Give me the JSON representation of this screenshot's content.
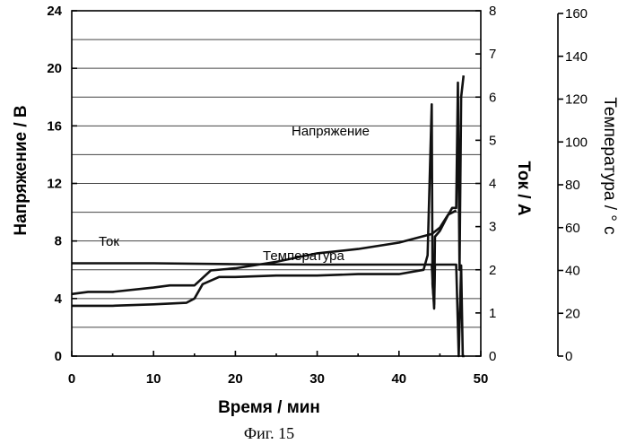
{
  "chart_data": {
    "type": "line",
    "caption": "Фиг. 15",
    "xlabel": "Время / мин",
    "xlim": [
      0,
      50
    ],
    "x_ticks": [
      0,
      10,
      20,
      30,
      40,
      50
    ],
    "grid": "horizontal",
    "axes": {
      "left": {
        "label": "Напряжение / В",
        "lim": [
          0,
          24
        ],
        "ticks": [
          0,
          4,
          8,
          12,
          16,
          20,
          24
        ]
      },
      "right1": {
        "label": "Ток / А",
        "lim": [
          0,
          8
        ],
        "ticks": [
          0,
          1,
          2,
          3,
          4,
          5,
          6,
          7,
          8
        ]
      },
      "right2": {
        "label": "Температура  / ° с",
        "lim": [
          0,
          160
        ],
        "ticks": [
          0,
          20,
          40,
          60,
          80,
          100,
          120,
          140,
          160
        ]
      }
    },
    "annotations": [
      "Ток",
      "Напряжение",
      "Температура"
    ],
    "series": [
      {
        "name": "Напряжение",
        "axis": "left",
        "x": [
          0,
          5,
          10,
          14,
          15,
          16,
          18,
          20,
          25,
          30,
          35,
          40,
          43,
          43.5,
          44,
          44.1,
          44.3,
          44.4,
          45,
          46,
          46.5,
          47,
          47.2,
          47.4,
          47.6,
          47.9
        ],
        "y": [
          3.5,
          3.5,
          3.6,
          3.7,
          4.0,
          5.0,
          5.5,
          5.5,
          5.6,
          5.6,
          5.7,
          5.7,
          6.0,
          7.0,
          17.5,
          5.0,
          3.6,
          8.3,
          8.7,
          9.8,
          10.3,
          10.3,
          19.0,
          6.0,
          18.0,
          19.5
        ]
      },
      {
        "name": "Ток",
        "axis": "right1",
        "x": [
          0,
          10,
          20,
          30,
          40,
          44,
          44.3,
          44.4,
          44.6,
          47,
          47.3,
          47.6,
          47.8,
          48
        ],
        "y": [
          2.15,
          2.15,
          2.13,
          2.12,
          2.12,
          2.12,
          1.1,
          2.12,
          2.12,
          2.12,
          0.0,
          2.1,
          0.0,
          0.0
        ]
      },
      {
        "name": "Температура",
        "axis": "right2",
        "x": [
          0,
          2,
          5,
          10,
          12,
          15,
          17,
          20,
          25,
          30,
          35,
          40,
          43,
          44,
          45,
          46,
          47
        ],
        "y": [
          29,
          30,
          30,
          32,
          33,
          33,
          40,
          41,
          44,
          48,
          50,
          53,
          56,
          57,
          60,
          66,
          68
        ]
      }
    ]
  }
}
